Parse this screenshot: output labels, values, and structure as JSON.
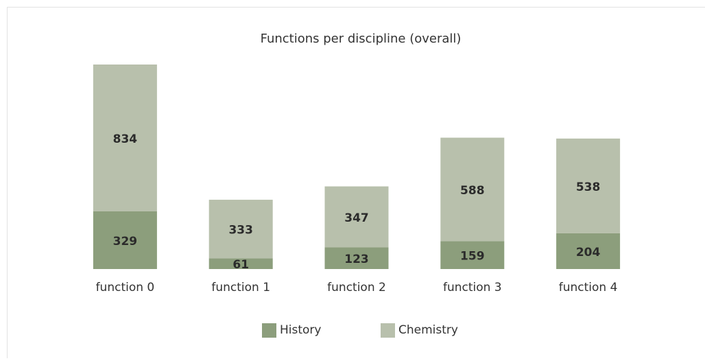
{
  "chart_data": {
    "type": "bar",
    "stacked": true,
    "title": "Functions per discipline (overall)",
    "categories": [
      "function 0",
      "function 1",
      "function 2",
      "function 3",
      "function 4"
    ],
    "series": [
      {
        "name": "History",
        "color": "#8c9e7c",
        "values": [
          329,
          61,
          123,
          159,
          204
        ]
      },
      {
        "name": "Chemistry",
        "color": "#b8c0ac",
        "values": [
          834,
          333,
          347,
          588,
          538
        ]
      }
    ],
    "legend": "bottom"
  }
}
